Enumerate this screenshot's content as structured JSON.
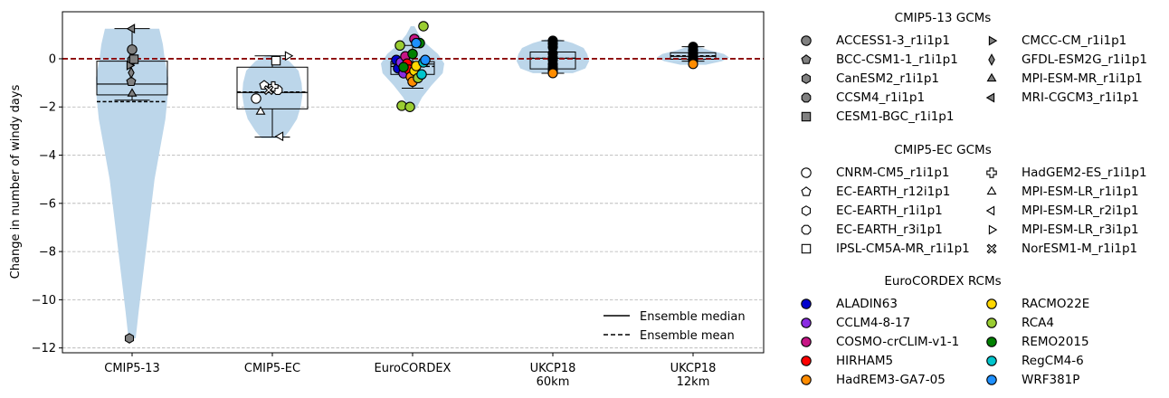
{
  "chart_data": {
    "type": "violin-box-scatter",
    "title": "",
    "xlabel": "",
    "ylabel": "Change in number of windy days",
    "ylim": [
      -12.2,
      1.95
    ],
    "yticks": [
      -12,
      -10,
      -8,
      -6,
      -4,
      -2,
      0
    ],
    "ytick_labels": [
      "−12",
      "−10",
      "−8",
      "−6",
      "−4",
      "−2",
      "0"
    ],
    "grid": "horizontal dashed",
    "zero_line_color": "#8b0000",
    "violin_color": "#bcd6ea",
    "categories": [
      {
        "label": [
          "CMIP5-13"
        ],
        "violin": [
          [
            -11.6,
            0.1
          ],
          [
            -10.5,
            0.18
          ],
          [
            -9,
            0.3
          ],
          [
            -7,
            0.46
          ],
          [
            -5,
            0.62
          ],
          [
            -3.5,
            0.8
          ],
          [
            -2.5,
            0.92
          ],
          [
            -1.6,
            0.98
          ],
          [
            -0.8,
            1.0
          ],
          [
            0,
            0.9
          ],
          [
            0.6,
            0.85
          ],
          [
            1.25,
            0.75
          ]
        ],
        "box": {
          "q1": -1.5,
          "median": -1.05,
          "q3": -0.1,
          "whisker_low": -1.72,
          "whisker_high": 1.25,
          "mean": -1.78
        },
        "points": [
          {
            "model": "ACCESS1-3_r1i1p1",
            "value": 0.38
          },
          {
            "model": "BCC-CSM1-1_r1i1p1",
            "value": -0.95
          },
          {
            "model": "CanESM2_r1i1p1",
            "value": -11.6
          },
          {
            "model": "CCSM4_r1i1p1",
            "value": -0.05
          },
          {
            "model": "CESM1-BGC_r1i1p1",
            "value": -0.02
          },
          {
            "model": "CMCC-CM_r1i1p1",
            "value": -0.28
          },
          {
            "model": "GFDL-ESM2G_r1i1p1",
            "value": -0.58
          },
          {
            "model": "MPI-ESM-MR_r1i1p1",
            "value": -1.45
          },
          {
            "model": "MRI-CGCM3_r1i1p1",
            "value": 1.25
          }
        ]
      },
      {
        "label": [
          "CMIP5-EC"
        ],
        "violin": [
          [
            -3.3,
            0.35
          ],
          [
            -3.0,
            0.55
          ],
          [
            -2.5,
            0.8
          ],
          [
            -2.0,
            0.92
          ],
          [
            -1.5,
            0.98
          ],
          [
            -1.0,
            0.95
          ],
          [
            -0.5,
            0.85
          ],
          [
            -0.1,
            0.55
          ],
          [
            0.15,
            0.15
          ]
        ],
        "box": {
          "q1": -2.08,
          "median": -1.4,
          "q3": -0.35,
          "whisker_low": -3.25,
          "whisker_high": 0.12,
          "mean": -1.38
        },
        "points": [
          {
            "model": "CNRM-CM5_r1i1p1",
            "value": -1.65
          },
          {
            "model": "EC-EARTH_r12i1p1",
            "value": -1.1
          },
          {
            "model": "EC-EARTH_r1i1p1",
            "value": -1.2
          },
          {
            "model": "EC-EARTH_r3i1p1",
            "value": -1.3
          },
          {
            "model": "IPSL-CM5A-MR_r1i1p1",
            "value": -0.08
          },
          {
            "model": "HadGEM2-ES_r1i1p1",
            "value": -1.15
          },
          {
            "model": "MPI-ESM-LR_r1i1p1",
            "value": -2.2
          },
          {
            "model": "MPI-ESM-LR_r2i1p1",
            "value": -3.22
          },
          {
            "model": "MPI-ESM-LR_r3i1p1",
            "value": 0.12
          },
          {
            "model": "NorESM1-M_r1i1p1",
            "value": -1.3
          }
        ]
      },
      {
        "label": [
          "EuroCORDEX"
        ],
        "violin": [
          [
            -2.1,
            0.1
          ],
          [
            -1.6,
            0.3
          ],
          [
            -1.1,
            0.6
          ],
          [
            -0.6,
            0.95
          ],
          [
            -0.2,
            1.0
          ],
          [
            0.2,
            0.8
          ],
          [
            0.6,
            0.45
          ],
          [
            1.0,
            0.2
          ],
          [
            1.35,
            0.06
          ]
        ],
        "box": {
          "q1": -0.65,
          "median": -0.22,
          "q3": -0.12,
          "whisker_low": -1.22,
          "whisker_high": 0.55,
          "mean": -0.32
        },
        "points": [
          {
            "model": "ALADIN63",
            "value": -0.05
          },
          {
            "model": "ALADIN63",
            "value": -0.4
          },
          {
            "model": "CCLM4-8-17",
            "value": -0.15
          },
          {
            "model": "CCLM4-8-17",
            "value": -0.6
          },
          {
            "model": "COSMO-crCLIM-v1-1",
            "value": 0.82
          },
          {
            "model": "COSMO-crCLIM-v1-1",
            "value": 0.1
          },
          {
            "model": "HIRHAM5",
            "value": -0.2
          },
          {
            "model": "HIRHAM5",
            "value": -0.45
          },
          {
            "model": "HadREM3-GA7-05",
            "value": -0.75
          },
          {
            "model": "HadREM3-GA7-05",
            "value": -0.95
          },
          {
            "model": "RACMO22E",
            "value": -0.5
          },
          {
            "model": "RACMO22E",
            "value": -0.3
          },
          {
            "model": "RCA4",
            "value": 0.55
          },
          {
            "model": "RCA4",
            "value": -0.8
          },
          {
            "model": "RCA4",
            "value": -1.95
          },
          {
            "model": "RCA4",
            "value": -2.0
          },
          {
            "model": "RCA4",
            "value": 1.35
          },
          {
            "model": "REMO2015",
            "value": 0.65
          },
          {
            "model": "REMO2015",
            "value": 0.2
          },
          {
            "model": "REMO2015",
            "value": -0.35
          },
          {
            "model": "RegCM4-6",
            "value": -0.65
          },
          {
            "model": "RegCM4-6",
            "value": -0.15
          },
          {
            "model": "WRF381P",
            "value": 0.65
          },
          {
            "model": "WRF381P",
            "value": -0.05
          }
        ]
      },
      {
        "label": [
          "UKCP18",
          "60km"
        ],
        "violin": [
          [
            -0.6,
            0.55
          ],
          [
            -0.4,
            0.9
          ],
          [
            -0.1,
            1.0
          ],
          [
            0.2,
            0.95
          ],
          [
            0.45,
            0.85
          ],
          [
            0.65,
            0.55
          ],
          [
            0.8,
            0.2
          ]
        ],
        "box": {
          "q1": -0.42,
          "median": 0.02,
          "q3": 0.28,
          "whisker_low": -0.6,
          "whisker_high": 0.75,
          "mean": 0.02
        },
        "points": [
          {
            "model": "",
            "value": 0.75
          },
          {
            "model": "",
            "value": 0.62
          },
          {
            "model": "",
            "value": 0.48
          },
          {
            "model": "",
            "value": 0.22
          },
          {
            "model": "",
            "value": 0.05
          },
          {
            "model": "",
            "value": -0.05
          },
          {
            "model": "",
            "value": -0.22
          },
          {
            "model": "",
            "value": -0.35
          },
          {
            "model": "",
            "value": -0.45
          },
          {
            "model": "",
            "value": -0.52
          },
          {
            "model": "",
            "value": -0.6,
            "highlight": true
          }
        ]
      },
      {
        "label": [
          "UKCP18",
          "12km"
        ],
        "violin": [
          [
            -0.25,
            0.35
          ],
          [
            -0.1,
            0.8
          ],
          [
            0.05,
            1.0
          ],
          [
            0.2,
            0.85
          ],
          [
            0.35,
            0.45
          ],
          [
            0.5,
            0.15
          ]
        ],
        "box": {
          "q1": -0.02,
          "median": 0.1,
          "q3": 0.25,
          "whisker_low": -0.1,
          "whisker_high": 0.5,
          "mean": 0.12
        },
        "points": [
          {
            "model": "",
            "value": 0.5
          },
          {
            "model": "",
            "value": 0.35
          },
          {
            "model": "",
            "value": 0.2
          },
          {
            "model": "",
            "value": 0.1
          },
          {
            "model": "",
            "value": 0.02
          },
          {
            "model": "",
            "value": -0.08
          },
          {
            "model": "",
            "value": -0.22,
            "highlight": true
          }
        ]
      }
    ],
    "legend_inside": [
      {
        "label": "Ensemble median",
        "style": "solid"
      },
      {
        "label": "Ensemble mean",
        "style": "dashed"
      }
    ]
  },
  "legend": {
    "groups": [
      {
        "title": "CMIP5-13 GCMs",
        "items": [
          {
            "label": "ACCESS1-3_r1i1p1",
            "marker": "circle",
            "fill": "#808080"
          },
          {
            "label": "BCC-CSM1-1_r1i1p1",
            "marker": "pentagon",
            "fill": "#808080"
          },
          {
            "label": "CanESM2_r1i1p1",
            "marker": "hexagon",
            "fill": "#808080"
          },
          {
            "label": "CCSM4_r1i1p1",
            "marker": "octagon",
            "fill": "#808080"
          },
          {
            "label": "CESM1-BGC_r1i1p1",
            "marker": "square",
            "fill": "#808080"
          },
          {
            "label": "CMCC-CM_r1i1p1",
            "marker": "triangle-right",
            "fill": "#808080"
          },
          {
            "label": "GFDL-ESM2G_r1i1p1",
            "marker": "diamond",
            "fill": "#808080"
          },
          {
            "label": "MPI-ESM-MR_r1i1p1",
            "marker": "triangle-up",
            "fill": "#808080"
          },
          {
            "label": "MRI-CGCM3_r1i1p1",
            "marker": "triangle-left",
            "fill": "#808080"
          }
        ]
      },
      {
        "title": "CMIP5-EC GCMs",
        "items": [
          {
            "label": "CNRM-CM5_r1i1p1",
            "marker": "circle",
            "fill": "#ffffff"
          },
          {
            "label": "EC-EARTH_r12i1p1",
            "marker": "pentagon",
            "fill": "#ffffff"
          },
          {
            "label": "EC-EARTH_r1i1p1",
            "marker": "hexagon",
            "fill": "#ffffff"
          },
          {
            "label": "EC-EARTH_r3i1p1",
            "marker": "octagon",
            "fill": "#ffffff"
          },
          {
            "label": "IPSL-CM5A-MR_r1i1p1",
            "marker": "square",
            "fill": "#ffffff"
          },
          {
            "label": "HadGEM2-ES_r1i1p1",
            "marker": "plus",
            "fill": "#ffffff"
          },
          {
            "label": "MPI-ESM-LR_r1i1p1",
            "marker": "triangle-up",
            "fill": "#ffffff"
          },
          {
            "label": "MPI-ESM-LR_r2i1p1",
            "marker": "triangle-left",
            "fill": "#ffffff"
          },
          {
            "label": "MPI-ESM-LR_r3i1p1",
            "marker": "triangle-right",
            "fill": "#ffffff"
          },
          {
            "label": "NorESM1-M_r1i1p1",
            "marker": "x",
            "fill": "#ffffff"
          }
        ]
      },
      {
        "title": "EuroCORDEX RCMs",
        "items": [
          {
            "label": "ALADIN63",
            "marker": "circle",
            "fill": "#0000cd"
          },
          {
            "label": "CCLM4-8-17",
            "marker": "circle",
            "fill": "#8a2be2"
          },
          {
            "label": "COSMO-crCLIM-v1-1",
            "marker": "circle",
            "fill": "#c71585"
          },
          {
            "label": "HIRHAM5",
            "marker": "circle",
            "fill": "#ff0000"
          },
          {
            "label": "HadREM3-GA7-05",
            "marker": "circle",
            "fill": "#ff8c00"
          },
          {
            "label": "RACMO22E",
            "marker": "circle",
            "fill": "#ffd700"
          },
          {
            "label": "RCA4",
            "marker": "circle",
            "fill": "#9acd32"
          },
          {
            "label": "REMO2015",
            "marker": "circle",
            "fill": "#008000"
          },
          {
            "label": "RegCM4-6",
            "marker": "circle",
            "fill": "#00c5cd"
          },
          {
            "label": "WRF381P",
            "marker": "circle",
            "fill": "#1e90ff"
          }
        ]
      }
    ]
  }
}
